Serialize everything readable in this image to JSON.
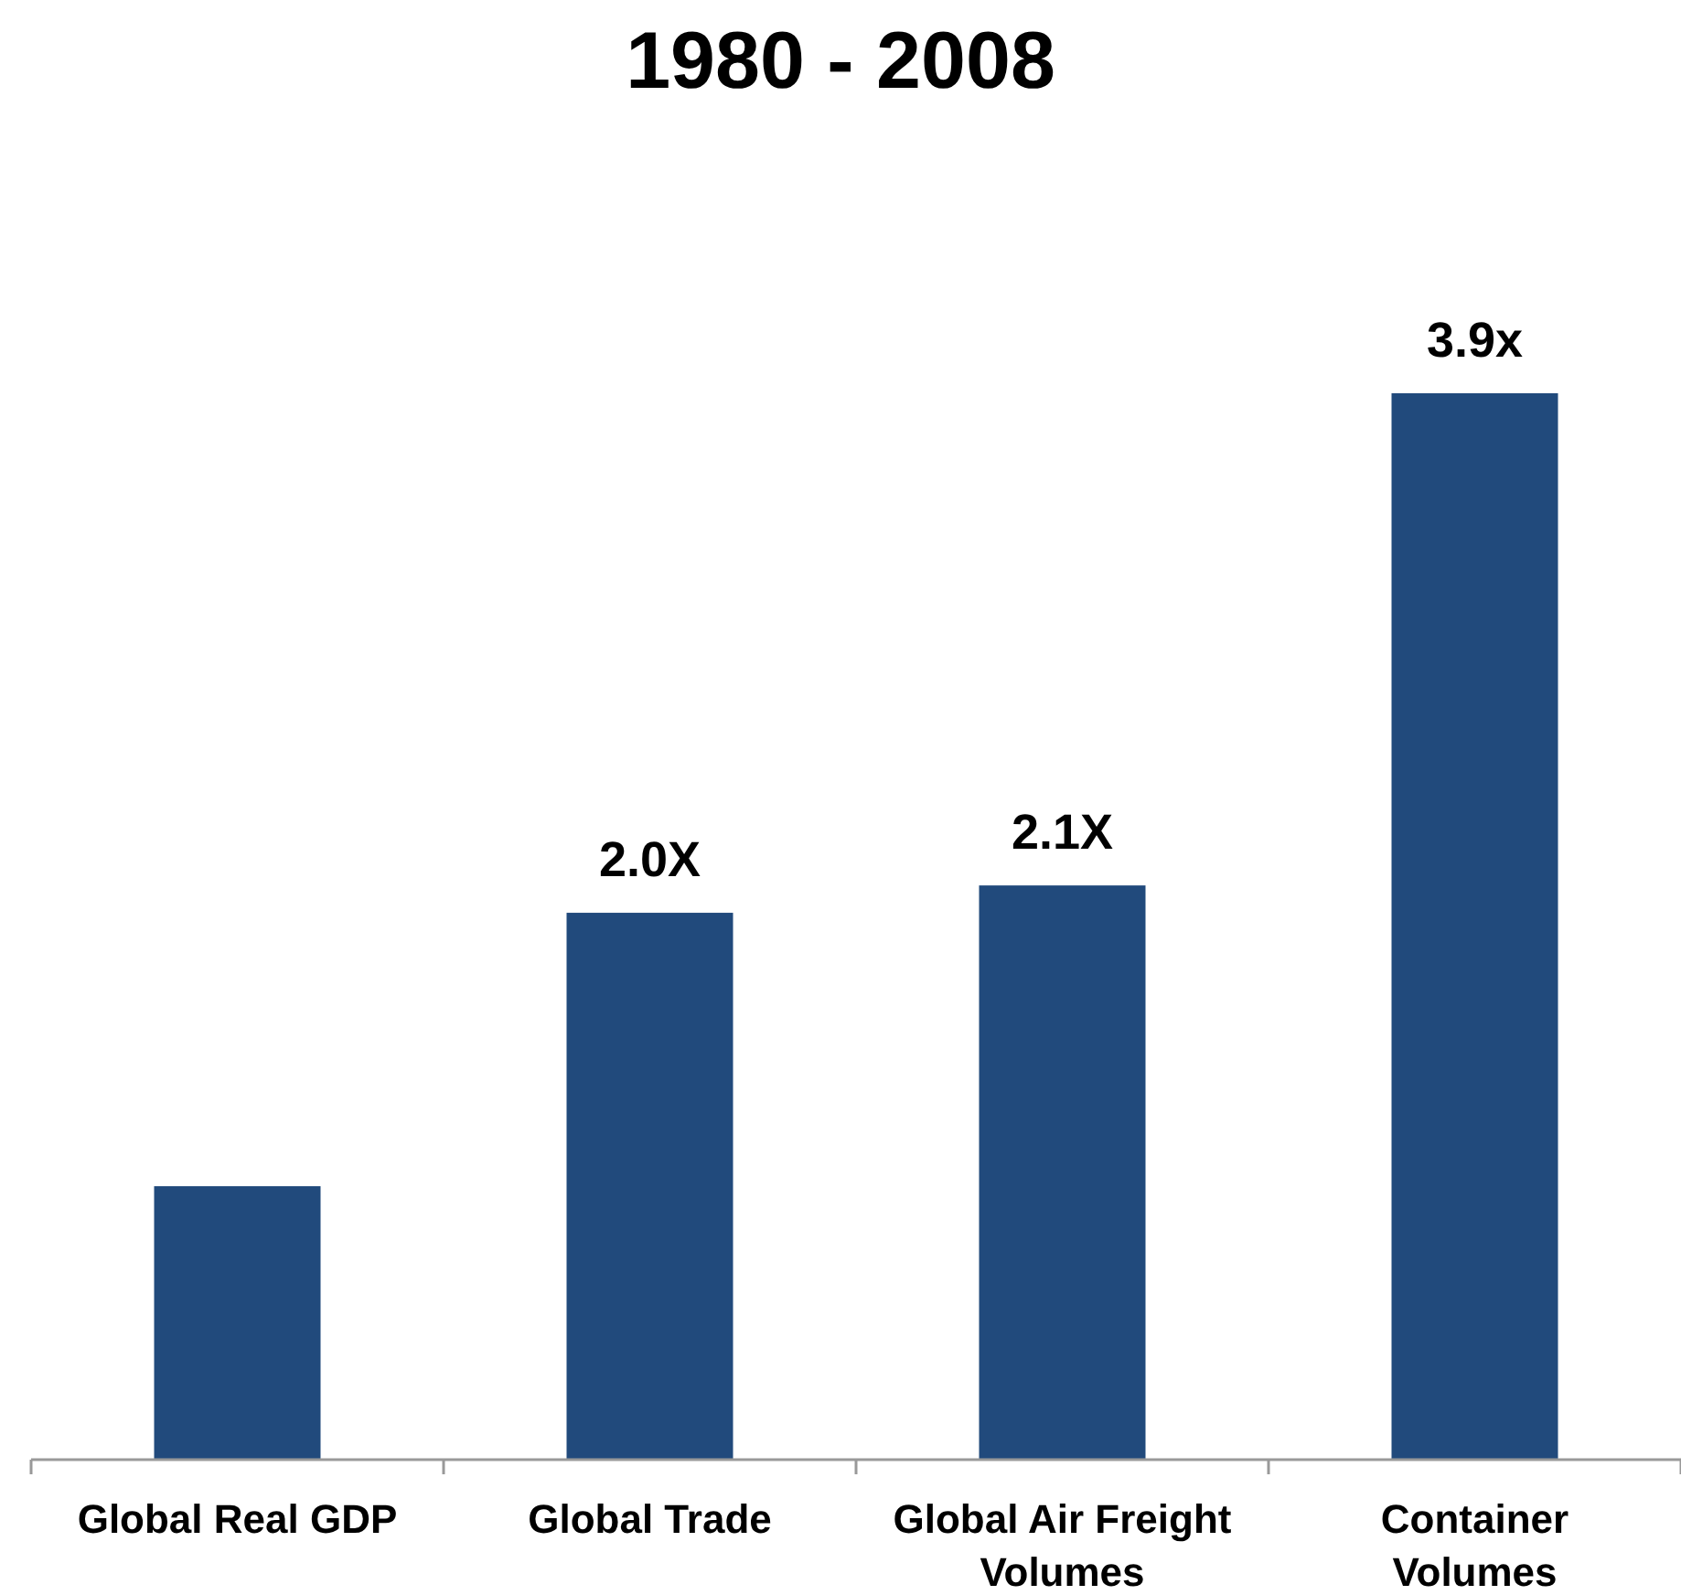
{
  "chart_data": {
    "type": "bar",
    "title": "1980 - 2008",
    "categories": [
      "Global Real GDP",
      "Global Trade",
      "Global Air Freight Volumes",
      "Container Volumes"
    ],
    "values": [
      1.0,
      2.0,
      2.1,
      3.9
    ],
    "value_labels": [
      null,
      "2.0X",
      "2.1X",
      "3.9x"
    ],
    "color": "#214a7c"
  }
}
